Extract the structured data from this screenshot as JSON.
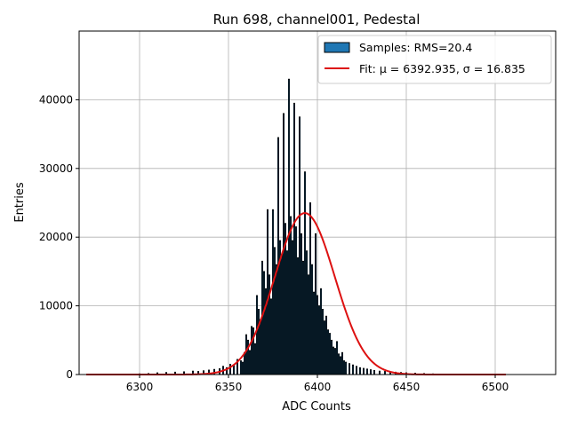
{
  "chart_data": {
    "type": "bar",
    "title": "Run 698, channel001, Pedestal",
    "xlabel": "ADC Counts",
    "ylabel": "Entries",
    "xlim": [
      6266,
      6534
    ],
    "ylim": [
      0,
      50000
    ],
    "xticks": [
      6300,
      6350,
      6400,
      6450,
      6500
    ],
    "yticks": [
      0,
      10000,
      20000,
      30000,
      40000
    ],
    "grid": true,
    "legend_position": "top-right",
    "histogram": {
      "name": "Samples: RMS=20.4",
      "color": "#1f77b4",
      "edgecolor": "#000000",
      "bins": [
        [
          6300,
          100
        ],
        [
          6305,
          150
        ],
        [
          6310,
          250
        ],
        [
          6315,
          300
        ],
        [
          6320,
          350
        ],
        [
          6325,
          400
        ],
        [
          6330,
          500
        ],
        [
          6333,
          450
        ],
        [
          6336,
          550
        ],
        [
          6339,
          650
        ],
        [
          6342,
          750
        ],
        [
          6345,
          850
        ],
        [
          6347,
          1200
        ],
        [
          6349,
          1000
        ],
        [
          6351,
          1500
        ],
        [
          6353,
          1300
        ],
        [
          6355,
          2200
        ],
        [
          6357,
          2000
        ],
        [
          6358,
          1800
        ],
        [
          6359,
          3200
        ],
        [
          6360,
          5800
        ],
        [
          6361,
          5000
        ],
        [
          6362,
          3500
        ],
        [
          6363,
          7000
        ],
        [
          6364,
          6800
        ],
        [
          6365,
          4500
        ],
        [
          6366,
          11500
        ],
        [
          6367,
          9500
        ],
        [
          6368,
          8000
        ],
        [
          6369,
          16500
        ],
        [
          6370,
          15000
        ],
        [
          6371,
          12500
        ],
        [
          6372,
          24000
        ],
        [
          6373,
          14500
        ],
        [
          6374,
          11000
        ],
        [
          6375,
          24000
        ],
        [
          6376,
          18500
        ],
        [
          6377,
          16000
        ],
        [
          6378,
          34500
        ],
        [
          6379,
          19500
        ],
        [
          6380,
          17500
        ],
        [
          6381,
          38000
        ],
        [
          6382,
          22000
        ],
        [
          6383,
          18000
        ],
        [
          6384,
          43000
        ],
        [
          6385,
          23000
        ],
        [
          6386,
          19500
        ],
        [
          6387,
          39500
        ],
        [
          6388,
          21500
        ],
        [
          6389,
          17000
        ],
        [
          6390,
          37500
        ],
        [
          6391,
          20500
        ],
        [
          6392,
          16500
        ],
        [
          6393,
          29500
        ],
        [
          6394,
          18000
        ],
        [
          6395,
          14500
        ],
        [
          6396,
          25000
        ],
        [
          6397,
          16000
        ],
        [
          6398,
          12000
        ],
        [
          6399,
          20500
        ],
        [
          6400,
          11500
        ],
        [
          6401,
          10000
        ],
        [
          6402,
          12500
        ],
        [
          6403,
          9500
        ],
        [
          6404,
          7800
        ],
        [
          6405,
          8500
        ],
        [
          6406,
          6500
        ],
        [
          6407,
          6000
        ],
        [
          6408,
          5000
        ],
        [
          6409,
          4000
        ],
        [
          6410,
          3800
        ],
        [
          6411,
          4800
        ],
        [
          6412,
          3000
        ],
        [
          6413,
          2600
        ],
        [
          6414,
          3200
        ],
        [
          6415,
          2000
        ],
        [
          6416,
          1800
        ],
        [
          6418,
          1600
        ],
        [
          6420,
          1400
        ],
        [
          6422,
          1200
        ],
        [
          6424,
          1000
        ],
        [
          6426,
          900
        ],
        [
          6428,
          800
        ],
        [
          6430,
          700
        ],
        [
          6432,
          600
        ],
        [
          6435,
          500
        ],
        [
          6438,
          450
        ],
        [
          6441,
          400
        ],
        [
          6444,
          350
        ],
        [
          6447,
          300
        ],
        [
          6450,
          250
        ],
        [
          6455,
          200
        ],
        [
          6460,
          150
        ],
        [
          6465,
          100
        ]
      ]
    },
    "fit": {
      "name": "Fit: μ = 6392.935, σ = 16.835",
      "color": "#dd1111",
      "mu": 6392.935,
      "sigma": 16.835,
      "amplitude": 23500,
      "x_range": [
        6270,
        6506
      ]
    }
  }
}
